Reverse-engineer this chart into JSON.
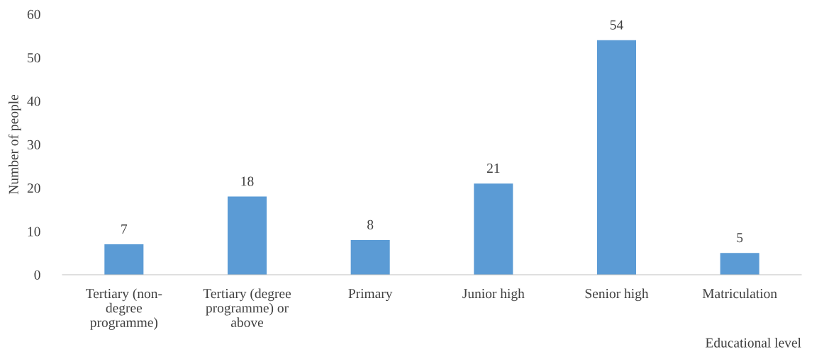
{
  "chart_data": {
    "type": "bar",
    "xlabel": "Educational level",
    "ylabel": "Number of people",
    "categories": [
      "Tertiary (non-\ndegree\nprogramme)",
      "Tertiary (degree\nprogramme) or\nabove",
      "Primary",
      "Junior high",
      "Senior high",
      "Matriculation"
    ],
    "values": [
      7,
      18,
      8,
      21,
      54,
      5
    ],
    "color": "#5b9bd5",
    "ylim": [
      0,
      60
    ],
    "yticks": [
      0,
      10,
      20,
      30,
      40,
      50,
      60
    ],
    "grid": false,
    "legend": false,
    "data_labels": true
  }
}
